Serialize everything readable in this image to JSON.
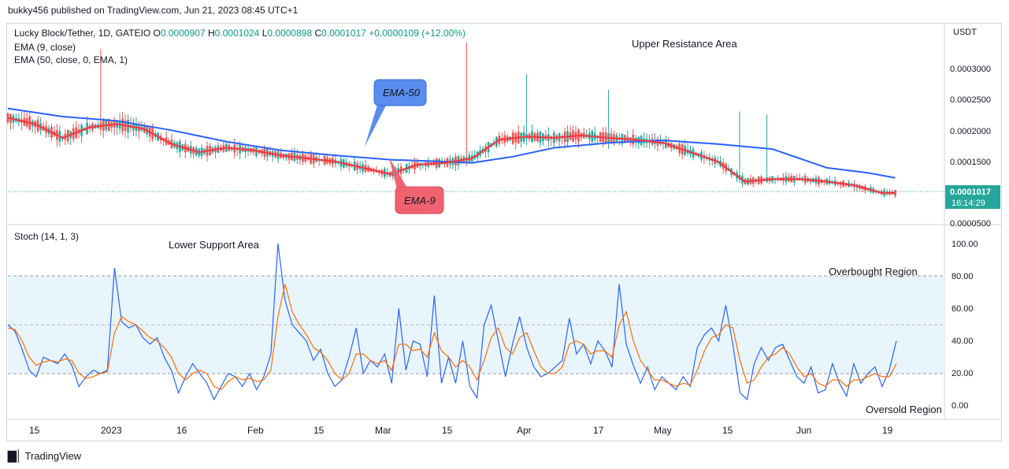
{
  "header": {
    "publish_caption": "bukky456 published on TradingView.com, Jun 21, 2023 08:45 UTC+1"
  },
  "price_pane": {
    "symbol_line": "Lucky Block/Tether, 1D, GATEIO",
    "ohlc": {
      "o_label": "O",
      "o": "0.0000907",
      "h_label": "H",
      "h": "0.0001024",
      "l_label": "L",
      "l": "0.0000898",
      "c_label": "C",
      "c": "0.0001017",
      "change": "+0.0000109 (+12.00%)"
    },
    "indicator_1": "EMA (9, close)",
    "indicator_2": "EMA (50, close, 0, EMA, 1)",
    "currency": "USDT",
    "price_ticks": [
      "0.0003000",
      "0.0002500",
      "0.0002000",
      "0.0001500",
      "0.0000500"
    ],
    "price_badge": "0.0001017",
    "countdown_badge": "16:14:29",
    "annotations": {
      "upper_resistance": "Upper Resistance Area",
      "ema50_callout": "EMA-50",
      "ema9_callout": "EMA-9"
    }
  },
  "stoch_pane": {
    "indicator_label": "Stoch (14, 1, 3)",
    "ticks": [
      "100.00",
      "80.00",
      "60.00",
      "40.00",
      "20.00",
      "0.00"
    ],
    "annotations": {
      "lower_support": "Lower Support Area",
      "overbought": "Overbought Region",
      "oversold": "Oversold Region"
    }
  },
  "time_axis": {
    "labels": [
      "15",
      "2023",
      "16",
      "Feb",
      "15",
      "Mar",
      "15",
      "Apr",
      "17",
      "May",
      "15",
      "Jun",
      "19"
    ]
  },
  "footer": {
    "brand": "TradingView"
  },
  "colors": {
    "ema50": "#2962ff",
    "ema9": "#f23645",
    "candle_up": "#26a69a",
    "candle_down": "#ef5350",
    "stoch_k": "#2962ff",
    "stoch_d": "#ff6d00",
    "band_fill": "#e3f2fd",
    "badge": "#26a69a",
    "callout_blue": "#5b8def",
    "callout_red": "#f06270"
  },
  "chart_data": [
    {
      "type": "candlestick",
      "title": "Lucky Block/Tether, 1D, GATEIO",
      "y_unit": "USDT",
      "ylim": [
        5e-05,
        0.00035
      ],
      "last_close": 0.0001017,
      "ema50": [
        [
          0,
          0.000235
        ],
        [
          20,
          0.000222
        ],
        [
          40,
          0.000215
        ],
        [
          60,
          0.0002
        ],
        [
          80,
          0.000182
        ],
        [
          100,
          0.000168
        ],
        [
          120,
          0.00016
        ],
        [
          140,
          0.000153
        ],
        [
          160,
          0.00015
        ],
        [
          170,
          0.000148
        ],
        [
          185,
          0.000158
        ],
        [
          200,
          0.000172
        ],
        [
          220,
          0.00018
        ],
        [
          240,
          0.000184
        ],
        [
          260,
          0.000178
        ],
        [
          280,
          0.00017
        ],
        [
          290,
          0.000155
        ],
        [
          300,
          0.00014
        ],
        [
          315,
          0.000132
        ],
        [
          325,
          0.000124
        ]
      ],
      "ema9": [
        [
          0,
          0.00022
        ],
        [
          10,
          0.00021
        ],
        [
          20,
          0.000188
        ],
        [
          30,
          0.000205
        ],
        [
          40,
          0.00021
        ],
        [
          50,
          0.000202
        ],
        [
          60,
          0.000178
        ],
        [
          70,
          0.000165
        ],
        [
          80,
          0.000172
        ],
        [
          90,
          0.000168
        ],
        [
          100,
          0.00016
        ],
        [
          110,
          0.000155
        ],
        [
          120,
          0.00015
        ],
        [
          130,
          0.00014
        ],
        [
          140,
          0.00013
        ],
        [
          150,
          0.000145
        ],
        [
          160,
          0.000148
        ],
        [
          170,
          0.000155
        ],
        [
          180,
          0.000185
        ],
        [
          190,
          0.00019
        ],
        [
          200,
          0.000188
        ],
        [
          210,
          0.000192
        ],
        [
          220,
          0.000188
        ],
        [
          230,
          0.000185
        ],
        [
          240,
          0.00018
        ],
        [
          250,
          0.000165
        ],
        [
          260,
          0.00015
        ],
        [
          270,
          0.000118
        ],
        [
          280,
          0.000122
        ],
        [
          290,
          0.000122
        ],
        [
          300,
          0.000118
        ],
        [
          310,
          0.000112
        ],
        [
          320,
          0.0001
        ],
        [
          325,
          0.0001
        ]
      ]
    },
    {
      "type": "line",
      "title": "Stoch (14, 1, 3)",
      "ylim": [
        0,
        100
      ],
      "overbought": 80,
      "oversold": 20,
      "series": [
        {
          "name": "%K",
          "values": [
            50,
            46,
            35,
            22,
            18,
            30,
            28,
            26,
            32,
            25,
            12,
            18,
            22,
            20,
            22,
            85,
            52,
            48,
            50,
            42,
            38,
            42,
            30,
            22,
            8,
            18,
            26,
            20,
            14,
            4,
            12,
            20,
            18,
            12,
            20,
            10,
            18,
            32,
            100,
            65,
            50,
            45,
            40,
            28,
            35,
            20,
            12,
            16,
            30,
            48,
            20,
            28,
            24,
            32,
            14,
            60,
            22,
            40,
            38,
            18,
            68,
            14,
            30,
            14,
            40,
            12,
            5,
            50,
            62,
            40,
            18,
            38,
            55,
            36,
            24,
            18,
            20,
            24,
            28,
            54,
            32,
            38,
            26,
            40,
            34,
            24,
            75,
            38,
            25,
            14,
            24,
            10,
            18,
            14,
            10,
            18,
            12,
            36,
            44,
            48,
            40,
            62,
            38,
            8,
            4,
            26,
            36,
            28,
            36,
            38,
            28,
            18,
            14,
            24,
            8,
            10,
            26,
            14,
            6,
            26,
            14,
            20,
            24,
            12,
            22,
            40
          ]
        },
        {
          "name": "%D",
          "values": [
            48,
            47,
            40,
            30,
            25,
            27,
            28,
            27,
            29,
            28,
            20,
            17,
            18,
            20,
            21,
            45,
            55,
            52,
            50,
            46,
            42,
            40,
            36,
            30,
            20,
            16,
            20,
            22,
            20,
            12,
            10,
            15,
            18,
            16,
            17,
            15,
            16,
            22,
            55,
            75,
            58,
            50,
            44,
            36,
            33,
            28,
            20,
            16,
            20,
            32,
            32,
            28,
            26,
            28,
            22,
            38,
            38,
            34,
            35,
            30,
            45,
            34,
            30,
            24,
            28,
            24,
            16,
            28,
            42,
            48,
            36,
            32,
            42,
            45,
            34,
            24,
            20,
            20,
            24,
            38,
            40,
            38,
            32,
            34,
            34,
            30,
            50,
            58,
            40,
            28,
            22,
            16,
            16,
            14,
            12,
            14,
            13,
            22,
            34,
            42,
            44,
            50,
            48,
            28,
            14,
            16,
            24,
            30,
            32,
            36,
            32,
            24,
            18,
            20,
            14,
            12,
            16,
            16,
            12,
            16,
            16,
            18,
            20,
            18,
            18,
            26
          ]
        }
      ]
    }
  ]
}
